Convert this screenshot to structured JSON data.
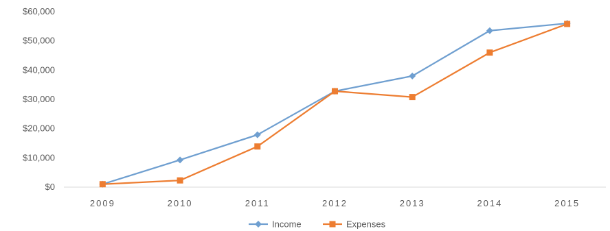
{
  "chart_data": {
    "type": "line",
    "title": "",
    "xlabel": "",
    "ylabel": "",
    "x": [
      "2009",
      "2010",
      "2011",
      "2012",
      "2013",
      "2014",
      "2015"
    ],
    "ylim": [
      0,
      60000
    ],
    "yticks": [
      0,
      10000,
      20000,
      30000,
      40000,
      50000,
      60000
    ],
    "ytick_labels": [
      "$0",
      "$10,000",
      "$20,000",
      "$30,000",
      "$40,000",
      "$50,000",
      "$60,000"
    ],
    "grid": false,
    "legend_position": "bottom",
    "series": [
      {
        "name": "Income",
        "color": "#6f9fd0",
        "marker": "diamond",
        "values": [
          1000,
          9300,
          17900,
          32800,
          38000,
          53500,
          56000
        ]
      },
      {
        "name": "Expenses",
        "color": "#ed7d31",
        "marker": "square",
        "values": [
          1000,
          2300,
          13900,
          32800,
          30800,
          46000,
          55800
        ]
      }
    ]
  }
}
